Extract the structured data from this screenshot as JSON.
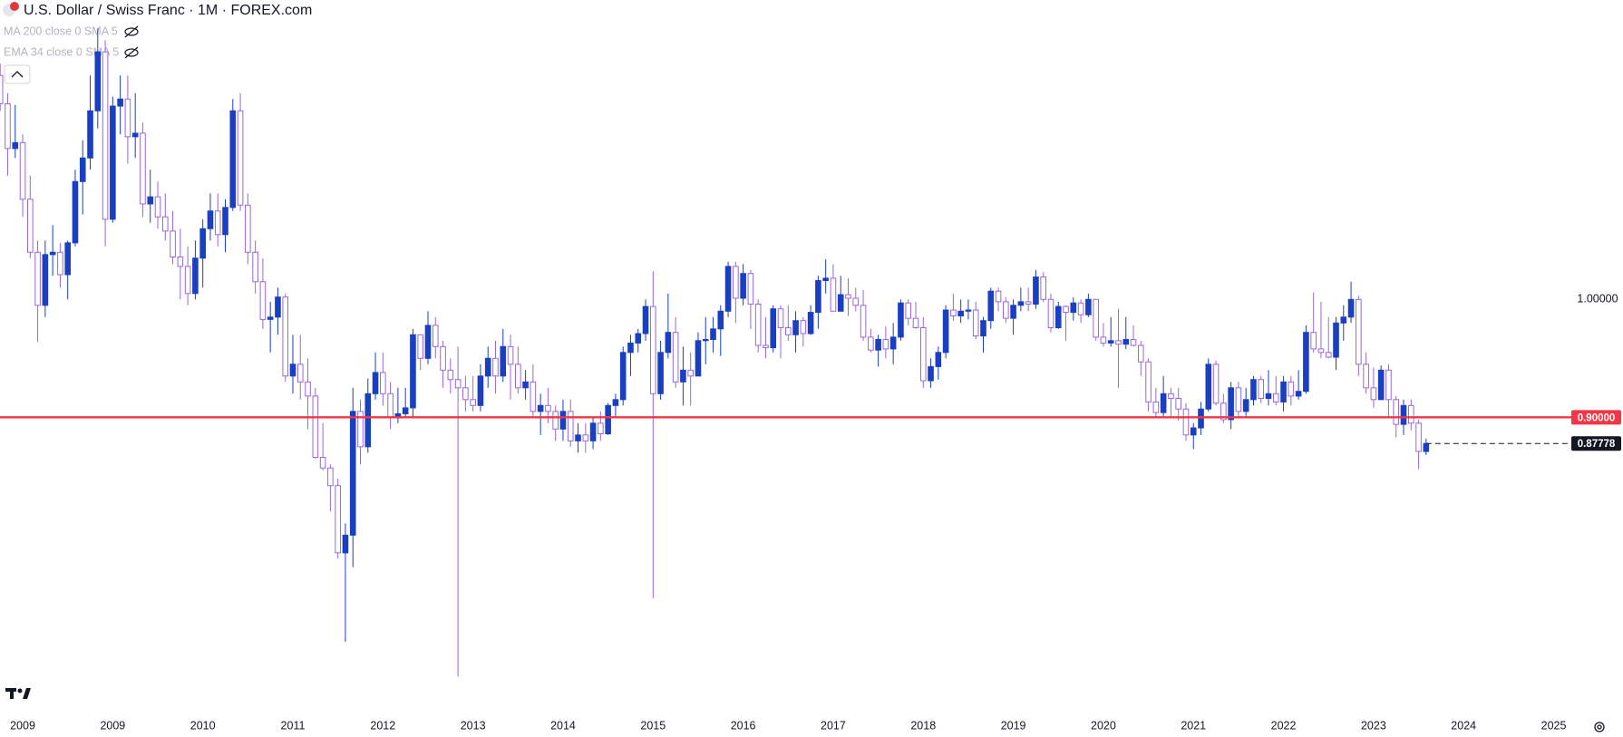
{
  "chart_data": {
    "type": "candlestick",
    "title": "U.S. Dollar / Swiss Franc · 1M · FOREX.com",
    "indicators": [
      "MA 200 close 0 SMA 5",
      "EMA 34 close 0 SMA 5"
    ],
    "up_color": "#1a3fc0",
    "down_color": "#9a66dc",
    "ylim": [
      0.648,
      1.254
    ],
    "yticks": [
      {
        "value": 1,
        "label": "1.00000"
      }
    ],
    "hline": {
      "value": 0.9,
      "label": "0.90000",
      "color": "#f23645"
    },
    "last_price": {
      "value": 0.87778,
      "label": "0.87778"
    },
    "categories": [
      null,
      null,
      null,
      "2009",
      null,
      null,
      null,
      null,
      null,
      null,
      null,
      null,
      null,
      null,
      null,
      "2009",
      null,
      null,
      null,
      null,
      null,
      null,
      null,
      null,
      null,
      null,
      null,
      "2010",
      null,
      null,
      null,
      null,
      null,
      null,
      null,
      null,
      null,
      null,
      null,
      "2011",
      null,
      null,
      null,
      null,
      null,
      null,
      null,
      null,
      null,
      null,
      null,
      "2012",
      null,
      null,
      null,
      null,
      null,
      null,
      null,
      null,
      null,
      null,
      null,
      "2013",
      null,
      null,
      null,
      null,
      null,
      null,
      null,
      null,
      null,
      null,
      null,
      "2014",
      null,
      null,
      null,
      null,
      null,
      null,
      null,
      null,
      null,
      null,
      null,
      "2015",
      null,
      null,
      null,
      null,
      null,
      null,
      null,
      null,
      null,
      null,
      null,
      "2016",
      null,
      null,
      null,
      null,
      null,
      null,
      null,
      null,
      null,
      null,
      null,
      "2017",
      null,
      null,
      null,
      null,
      null,
      null,
      null,
      null,
      null,
      null,
      null,
      "2018",
      null,
      null,
      null,
      null,
      null,
      null,
      null,
      null,
      null,
      null,
      null,
      "2019",
      null,
      null,
      null,
      null,
      null,
      null,
      null,
      null,
      null,
      null,
      null,
      "2020",
      null,
      null,
      null,
      null,
      null,
      null,
      null,
      null,
      null,
      null,
      null,
      "2021",
      null,
      null,
      null,
      null,
      null,
      null,
      null,
      null,
      null,
      null,
      null,
      "2022",
      null,
      null,
      null,
      null,
      null,
      null,
      null,
      null,
      null,
      null,
      null,
      "2023",
      null,
      null,
      null,
      null,
      null,
      null,
      null,
      null,
      null,
      null,
      null,
      "2024",
      null,
      null,
      null,
      null,
      null,
      null,
      null,
      null,
      null,
      null,
      null,
      "2025"
    ],
    "ohlc": [
      [
        1.19,
        1.2,
        1.16,
        1.166
      ],
      [
        1.166,
        1.175,
        1.105,
        1.128
      ],
      [
        1.128,
        1.165,
        1.12,
        1.133
      ],
      [
        1.133,
        1.14,
        1.07,
        1.085
      ],
      [
        1.085,
        1.105,
        1.035,
        1.04
      ],
      [
        1.04,
        1.05,
        0.964,
        0.995
      ],
      [
        0.995,
        1.05,
        0.985,
        1.038
      ],
      [
        1.038,
        1.063,
        1.02,
        1.04
      ],
      [
        1.04,
        1.048,
        1.01,
        1.021
      ],
      [
        1.021,
        1.05,
        1.0,
        1.048
      ],
      [
        1.048,
        1.11,
        1.045,
        1.1
      ],
      [
        1.1,
        1.135,
        1.072,
        1.12
      ],
      [
        1.12,
        1.19,
        1.11,
        1.16
      ],
      [
        1.16,
        1.23,
        1.145,
        1.21
      ],
      [
        1.21,
        1.22,
        1.045,
        1.068
      ],
      [
        1.068,
        1.172,
        1.065,
        1.164
      ],
      [
        1.164,
        1.19,
        1.14,
        1.17
      ],
      [
        1.17,
        1.19,
        1.115,
        1.138
      ],
      [
        1.138,
        1.175,
        1.12,
        1.141
      ],
      [
        1.141,
        1.15,
        1.07,
        1.081
      ],
      [
        1.081,
        1.11,
        1.065,
        1.087
      ],
      [
        1.087,
        1.1,
        1.06,
        1.07
      ],
      [
        1.07,
        1.09,
        1.05,
        1.058
      ],
      [
        1.058,
        1.075,
        1.03,
        1.036
      ],
      [
        1.036,
        1.06,
        1.0,
        1.028
      ],
      [
        1.028,
        1.045,
        0.995,
        1.005
      ],
      [
        1.005,
        1.05,
        1.0,
        1.035
      ],
      [
        1.035,
        1.068,
        1.01,
        1.06
      ],
      [
        1.06,
        1.09,
        1.05,
        1.075
      ],
      [
        1.075,
        1.09,
        1.045,
        1.055
      ],
      [
        1.055,
        1.085,
        1.04,
        1.078
      ],
      [
        1.078,
        1.17,
        1.075,
        1.16
      ],
      [
        1.16,
        1.175,
        1.075,
        1.08
      ],
      [
        1.08,
        1.09,
        1.03,
        1.04
      ],
      [
        1.04,
        1.05,
        1.005,
        1.015
      ],
      [
        1.015,
        1.035,
        0.975,
        0.983
      ],
      [
        0.983,
        0.998,
        0.955,
        0.985
      ],
      [
        0.985,
        1.01,
        0.97,
        1.002
      ],
      [
        1.002,
        1.005,
        0.93,
        0.935
      ],
      [
        0.935,
        0.97,
        0.92,
        0.945
      ],
      [
        0.945,
        0.97,
        0.915,
        0.93
      ],
      [
        0.93,
        0.95,
        0.89,
        0.918
      ],
      [
        0.918,
        0.925,
        0.865,
        0.866
      ],
      [
        0.866,
        0.895,
        0.855,
        0.857
      ],
      [
        0.857,
        0.86,
        0.82,
        0.842
      ],
      [
        0.842,
        0.848,
        0.78,
        0.785
      ],
      [
        0.785,
        0.81,
        0.7096,
        0.8
      ],
      [
        0.8,
        0.925,
        0.773,
        0.905
      ],
      [
        0.905,
        0.915,
        0.86,
        0.875
      ],
      [
        0.875,
        0.933,
        0.87,
        0.92
      ],
      [
        0.92,
        0.955,
        0.915,
        0.938
      ],
      [
        0.938,
        0.955,
        0.91,
        0.92
      ],
      [
        0.92,
        0.93,
        0.89,
        0.9
      ],
      [
        0.9,
        0.925,
        0.895,
        0.903
      ],
      [
        0.903,
        0.925,
        0.9,
        0.908
      ],
      [
        0.908,
        0.975,
        0.9,
        0.97
      ],
      [
        0.97,
        0.97,
        0.94,
        0.95
      ],
      [
        0.95,
        0.99,
        0.945,
        0.978
      ],
      [
        0.978,
        0.985,
        0.95,
        0.96
      ],
      [
        0.96,
        0.965,
        0.925,
        0.94
      ],
      [
        0.94,
        0.95,
        0.92,
        0.932
      ],
      [
        0.932,
        0.96,
        0.68,
        0.925
      ],
      [
        0.925,
        0.935,
        0.905,
        0.915
      ],
      [
        0.915,
        0.935,
        0.905,
        0.91
      ],
      [
        0.91,
        0.945,
        0.905,
        0.935
      ],
      [
        0.935,
        0.96,
        0.925,
        0.95
      ],
      [
        0.95,
        0.965,
        0.92,
        0.935
      ],
      [
        0.935,
        0.975,
        0.93,
        0.96
      ],
      [
        0.96,
        0.97,
        0.915,
        0.945
      ],
      [
        0.945,
        0.96,
        0.92,
        0.925
      ],
      [
        0.925,
        0.94,
        0.915,
        0.93
      ],
      [
        0.93,
        0.945,
        0.9,
        0.905
      ],
      [
        0.905,
        0.92,
        0.885,
        0.91
      ],
      [
        0.91,
        0.925,
        0.895,
        0.905
      ],
      [
        0.905,
        0.91,
        0.88,
        0.89
      ],
      [
        0.89,
        0.915,
        0.88,
        0.905
      ],
      [
        0.905,
        0.915,
        0.875,
        0.88
      ],
      [
        0.88,
        0.895,
        0.87,
        0.885
      ],
      [
        0.885,
        0.895,
        0.87,
        0.88
      ],
      [
        0.88,
        0.9,
        0.873,
        0.895
      ],
      [
        0.895,
        0.905,
        0.88,
        0.886
      ],
      [
        0.886,
        0.912,
        0.885,
        0.91
      ],
      [
        0.91,
        0.92,
        0.9,
        0.915
      ],
      [
        0.915,
        0.96,
        0.91,
        0.955
      ],
      [
        0.955,
        0.97,
        0.935,
        0.963
      ],
      [
        0.963,
        0.975,
        0.955,
        0.971
      ],
      [
        0.971,
        1.0,
        0.965,
        0.994
      ],
      [
        0.994,
        1.024,
        0.7465,
        0.92
      ],
      [
        0.92,
        0.965,
        0.915,
        0.955
      ],
      [
        0.955,
        1.005,
        0.95,
        0.972
      ],
      [
        0.972,
        0.985,
        0.925,
        0.93
      ],
      [
        0.93,
        0.96,
        0.91,
        0.94
      ],
      [
        0.94,
        0.955,
        0.91,
        0.935
      ],
      [
        0.935,
        0.972,
        0.935,
        0.965
      ],
      [
        0.965,
        0.985,
        0.945,
        0.966
      ],
      [
        0.966,
        0.985,
        0.955,
        0.975
      ],
      [
        0.975,
        0.995,
        0.952,
        0.99
      ],
      [
        0.99,
        1.032,
        0.985,
        1.028
      ],
      [
        1.028,
        1.032,
        0.98,
        1.001
      ],
      [
        1.001,
        1.03,
        0.995,
        1.022
      ],
      [
        1.022,
        1.025,
        0.975,
        0.996
      ],
      [
        0.996,
        1.0,
        0.955,
        0.961
      ],
      [
        0.961,
        0.985,
        0.95,
        0.959
      ],
      [
        0.959,
        0.995,
        0.955,
        0.992
      ],
      [
        0.992,
        0.995,
        0.95,
        0.976
      ],
      [
        0.976,
        0.995,
        0.965,
        0.97
      ],
      [
        0.97,
        0.99,
        0.955,
        0.982
      ],
      [
        0.982,
        0.985,
        0.96,
        0.971
      ],
      [
        0.971,
        0.995,
        0.97,
        0.989
      ],
      [
        0.989,
        1.02,
        0.975,
        1.016
      ],
      [
        1.016,
        1.034,
        1.005,
        1.018
      ],
      [
        1.018,
        1.03,
        0.99,
        0.99
      ],
      [
        0.99,
        1.02,
        0.99,
        1.004
      ],
      [
        1.004,
        1.018,
        0.986,
        1.001
      ],
      [
        1.001,
        1.01,
        0.99,
        0.995
      ],
      [
        0.995,
        1.008,
        0.965,
        0.968
      ],
      [
        0.968,
        0.975,
        0.955,
        0.957
      ],
      [
        0.957,
        0.97,
        0.943,
        0.966
      ],
      [
        0.966,
        0.977,
        0.95,
        0.958
      ],
      [
        0.958,
        0.98,
        0.945,
        0.968
      ],
      [
        0.968,
        1.0,
        0.965,
        0.997
      ],
      [
        0.997,
        1.0,
        0.978,
        0.984
      ],
      [
        0.984,
        0.998,
        0.975,
        0.976
      ],
      [
        0.976,
        0.985,
        0.925,
        0.931
      ],
      [
        0.931,
        0.95,
        0.925,
        0.943
      ],
      [
        0.943,
        0.96,
        0.932,
        0.955
      ],
      [
        0.955,
        0.995,
        0.95,
        0.991
      ],
      [
        0.991,
        1.005,
        0.982,
        0.986
      ],
      [
        0.986,
        1.0,
        0.98,
        0.99
      ],
      [
        0.99,
        1.0,
        0.983,
        0.991
      ],
      [
        0.991,
        0.998,
        0.966,
        0.969
      ],
      [
        0.969,
        0.985,
        0.955,
        0.982
      ],
      [
        0.982,
        1.01,
        0.975,
        1.007
      ],
      [
        1.007,
        1.01,
        0.99,
        0.998
      ],
      [
        0.998,
        1.002,
        0.98,
        0.984
      ],
      [
        0.984,
        1.0,
        0.97,
        0.995
      ],
      [
        0.995,
        1.01,
        0.99,
        0.998
      ],
      [
        0.998,
        1.01,
        0.99,
        0.996
      ],
      [
        0.996,
        1.025,
        0.992,
        1.019
      ],
      [
        1.019,
        1.023,
        0.998,
        1.0
      ],
      [
        1.0,
        1.005,
        0.972,
        0.976
      ],
      [
        0.976,
        0.998,
        0.975,
        0.994
      ],
      [
        0.994,
        0.995,
        0.965,
        0.989
      ],
      [
        0.989,
        1.002,
        0.982,
        0.997
      ],
      [
        0.997,
        1.0,
        0.98,
        0.987
      ],
      [
        0.987,
        1.005,
        0.985,
        1.0
      ],
      [
        1.0,
        1.0,
        0.965,
        0.968
      ],
      [
        0.968,
        0.98,
        0.96,
        0.963
      ],
      [
        0.963,
        0.985,
        0.96,
        0.965
      ],
      [
        0.965,
        0.992,
        0.925,
        0.962
      ],
      [
        0.962,
        0.985,
        0.958,
        0.966
      ],
      [
        0.966,
        0.978,
        0.96,
        0.961
      ],
      [
        0.961,
        0.965,
        0.935,
        0.947
      ],
      [
        0.947,
        0.95,
        0.905,
        0.913
      ],
      [
        0.913,
        0.925,
        0.9,
        0.904
      ],
      [
        0.904,
        0.935,
        0.9,
        0.92
      ],
      [
        0.92,
        0.925,
        0.9,
        0.916
      ],
      [
        0.916,
        0.925,
        0.897,
        0.907
      ],
      [
        0.907,
        0.912,
        0.88,
        0.885
      ],
      [
        0.885,
        0.895,
        0.873,
        0.891
      ],
      [
        0.891,
        0.913,
        0.885,
        0.907
      ],
      [
        0.907,
        0.95,
        0.905,
        0.945
      ],
      [
        0.945,
        0.948,
        0.91,
        0.912
      ],
      [
        0.912,
        0.92,
        0.895,
        0.898
      ],
      [
        0.898,
        0.93,
        0.89,
        0.925
      ],
      [
        0.925,
        0.93,
        0.9,
        0.905
      ],
      [
        0.905,
        0.925,
        0.9,
        0.915
      ],
      [
        0.915,
        0.935,
        0.91,
        0.932
      ],
      [
        0.932,
        0.935,
        0.912,
        0.916
      ],
      [
        0.916,
        0.94,
        0.91,
        0.92
      ],
      [
        0.92,
        0.935,
        0.91,
        0.913
      ],
      [
        0.913,
        0.935,
        0.905,
        0.93
      ],
      [
        0.93,
        0.935,
        0.91,
        0.918
      ],
      [
        0.918,
        0.94,
        0.915,
        0.922
      ],
      [
        0.922,
        0.978,
        0.92,
        0.972
      ],
      [
        0.972,
        1.006,
        0.955,
        0.958
      ],
      [
        0.958,
        0.998,
        0.95,
        0.955
      ],
      [
        0.955,
        0.985,
        0.95,
        0.951
      ],
      [
        0.951,
        0.985,
        0.94,
        0.98
      ],
      [
        0.98,
        0.995,
        0.965,
        0.985
      ],
      [
        0.985,
        1.015,
        0.98,
        1.0
      ],
      [
        1.0,
        1.003,
        0.935,
        0.945
      ],
      [
        0.945,
        0.955,
        0.92,
        0.925
      ],
      [
        0.925,
        0.942,
        0.908,
        0.915
      ],
      [
        0.915,
        0.944,
        0.915,
        0.94
      ],
      [
        0.94,
        0.945,
        0.9,
        0.915
      ],
      [
        0.915,
        0.918,
        0.883,
        0.894
      ],
      [
        0.894,
        0.915,
        0.885,
        0.91
      ],
      [
        0.91,
        0.915,
        0.889,
        0.895
      ],
      [
        0.895,
        0.898,
        0.856,
        0.871
      ],
      [
        0.871,
        0.882,
        0.868,
        0.87778
      ],
      null,
      null,
      null,
      null,
      null,
      null,
      null,
      null,
      null,
      null,
      null,
      null,
      null,
      null,
      null,
      null,
      null
    ]
  }
}
